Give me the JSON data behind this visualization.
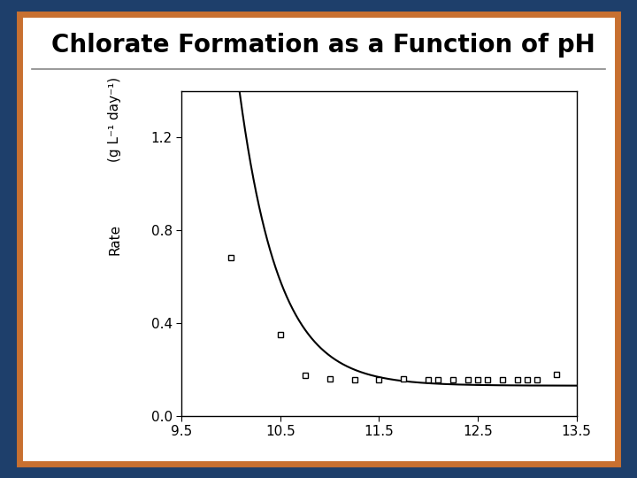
{
  "title": "Chlorate Formation as a Function of pH",
  "ylabel_top": "(g L⁻¹ day⁻¹)",
  "ylabel_bottom": "Rate",
  "xlim": [
    9.5,
    13.5
  ],
  "ylim": [
    0.0,
    1.4
  ],
  "xticks": [
    9.5,
    10.5,
    11.5,
    12.5,
    13.5
  ],
  "yticks": [
    0.0,
    0.4,
    0.8,
    1.2
  ],
  "curve_color": "#000000",
  "marker_color": "#000000",
  "background_color": "#ffffff",
  "outer_bg": "#1e3f6b",
  "border_color": "#c87030",
  "curve_A": 5.5,
  "curve_k": 2.5,
  "curve_x0": 9.5,
  "curve_C": 0.13,
  "data_points": [
    [
      10.0,
      0.68
    ],
    [
      10.5,
      0.35
    ],
    [
      10.75,
      0.175
    ],
    [
      11.0,
      0.16
    ],
    [
      11.25,
      0.155
    ],
    [
      11.5,
      0.155
    ],
    [
      11.75,
      0.16
    ],
    [
      12.0,
      0.155
    ],
    [
      12.1,
      0.155
    ],
    [
      12.25,
      0.155
    ],
    [
      12.4,
      0.155
    ],
    [
      12.5,
      0.155
    ],
    [
      12.6,
      0.155
    ],
    [
      12.75,
      0.155
    ],
    [
      12.9,
      0.155
    ],
    [
      13.0,
      0.155
    ],
    [
      13.1,
      0.155
    ],
    [
      13.3,
      0.18
    ]
  ],
  "title_fontsize": 20,
  "tick_fontsize": 11,
  "ylabel_fontsize": 11
}
